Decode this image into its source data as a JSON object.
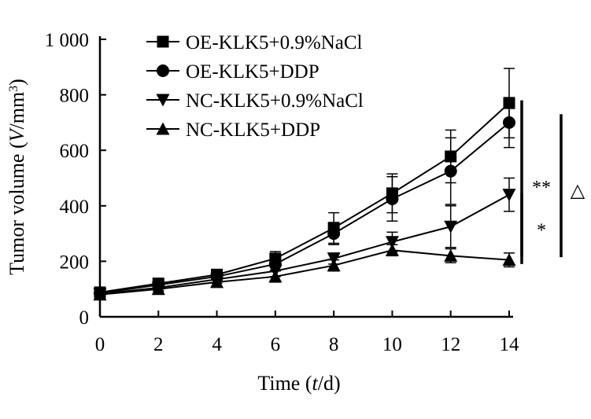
{
  "chart_data": {
    "type": "line",
    "xlabel_parts": [
      "Time (",
      "t",
      "/d)"
    ],
    "ylabel_parts": [
      "Tumor volume (",
      "V",
      "/mm",
      "3",
      ")"
    ],
    "x_ticks": [
      "0",
      "2",
      "4",
      "6",
      "8",
      "10",
      "12",
      "14"
    ],
    "y_ticks": [
      "0",
      "200",
      "400",
      "600",
      "800",
      "1 000"
    ],
    "xlim": [
      0,
      14
    ],
    "ylim": [
      0,
      1000
    ],
    "grid": false,
    "legend_position": "top-left",
    "x": [
      0,
      2,
      4,
      6,
      8,
      10,
      12,
      14
    ],
    "series": [
      {
        "name": "OE-KLK5+0.9%NaCl",
        "marker": "square",
        "values": [
          88,
          120,
          152,
          210,
          320,
          445,
          578,
          770
        ],
        "errors": [
          8,
          10,
          12,
          25,
          55,
          70,
          95,
          125
        ]
      },
      {
        "name": "OE-KLK5+DDP",
        "marker": "circle",
        "values": [
          85,
          115,
          145,
          190,
          300,
          425,
          525,
          700
        ],
        "errors": [
          8,
          10,
          12,
          22,
          40,
          80,
          120,
          90
        ]
      },
      {
        "name": "NC-KLK5+0.9%NaCl",
        "marker": "triangle-down",
        "values": [
          82,
          105,
          135,
          165,
          210,
          270,
          325,
          440
        ],
        "errors": [
          8,
          10,
          14,
          20,
          20,
          35,
          75,
          60
        ]
      },
      {
        "name": "NC-KLK5+DDP",
        "marker": "triangle-up",
        "values": [
          80,
          100,
          125,
          145,
          185,
          240,
          220,
          205
        ],
        "errors": [
          8,
          10,
          14,
          20,
          20,
          20,
          25,
          25
        ]
      }
    ],
    "annotations": [
      {
        "label": "**",
        "span": [
          190,
          780
        ],
        "level": 1
      },
      {
        "label": "*",
        "span": [
          215,
          445
        ],
        "level": 1
      },
      {
        "label": "△",
        "span": [
          215,
          730
        ],
        "level": 2
      }
    ]
  }
}
